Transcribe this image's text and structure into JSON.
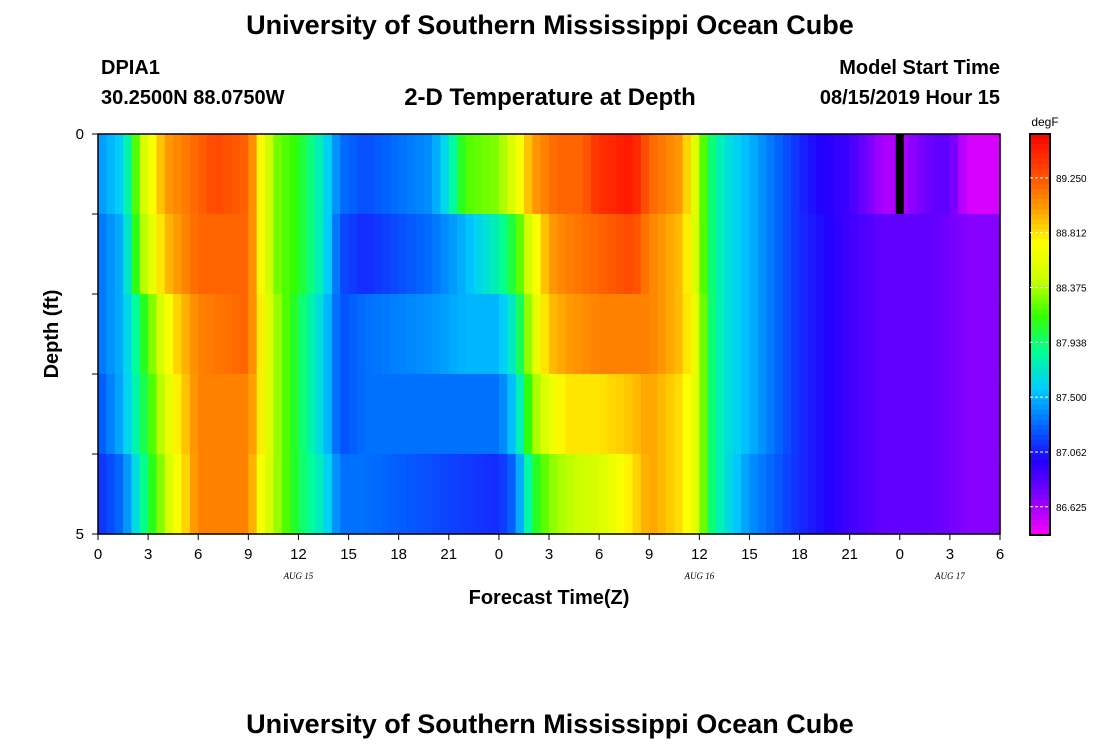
{
  "header": {
    "title": "University of Southern Mississippi Ocean Cube",
    "station_id": "DPIA1",
    "station_coords": "30.2500N 88.0750W",
    "plot_title": "2-D Temperature at Depth",
    "model_start_label": "Model Start Time",
    "model_start_value": "08/15/2019 Hour 15"
  },
  "footer": {
    "title": "University of Southern Mississippi Ocean Cube"
  },
  "chart_data": {
    "type": "heatmap",
    "title": "2-D Temperature at Depth",
    "xlabel": "Forecast Time(Z)",
    "ylabel": "Depth (ft)",
    "x_tick_labels": [
      "0",
      "3",
      "6",
      "9",
      "12",
      "15",
      "18",
      "21",
      "0",
      "3",
      "6",
      "9",
      "12",
      "15",
      "18",
      "21",
      "0",
      "3",
      "6"
    ],
    "x_hours_range": [
      0,
      54
    ],
    "date_labels": [
      {
        "hour": 12,
        "text": "AUG 15"
      },
      {
        "hour": 36,
        "text": "AUG 16"
      },
      {
        "hour": 51,
        "text": "AUG 17"
      }
    ],
    "y_tick_labels": [
      "0",
      "5"
    ],
    "ylim": [
      0,
      5
    ],
    "depth_levels": 5,
    "colorbar": {
      "unit": "degF",
      "min": 86.4,
      "max": 89.6,
      "tick_labels": [
        "89.250",
        "88.812",
        "88.375",
        "87.938",
        "87.500",
        "87.062",
        "86.625"
      ],
      "tick_values": [
        89.25,
        88.812,
        88.375,
        87.938,
        87.5,
        87.062,
        86.625
      ],
      "colors": [
        "#ff00ff",
        "#8800ff",
        "#2200ff",
        "#0066ff",
        "#00ccff",
        "#00ff99",
        "#33ff00",
        "#ccff00",
        "#ffff00",
        "#ff9900",
        "#ff4400",
        "#ff0000"
      ]
    },
    "time_step_hours": 0.5,
    "profile_keypoints": [
      {
        "depth_row": 0,
        "t_hours": [
          0,
          1.5,
          2.5,
          4,
          6,
          7,
          9,
          9.5,
          10.5,
          12,
          13.5,
          14.5,
          16,
          20,
          21,
          22,
          24,
          25,
          26,
          27.5,
          29,
          30,
          32,
          33,
          35,
          36,
          36.5,
          37.5,
          39,
          42,
          43,
          45,
          47,
          48,
          50,
          51,
          52,
          54
        ],
        "temps": [
          87.4,
          87.6,
          88.4,
          89.0,
          89.2,
          89.3,
          89.2,
          88.9,
          88.3,
          88.1,
          87.7,
          87.3,
          87.2,
          87.4,
          87.7,
          88.2,
          88.3,
          88.6,
          89.0,
          89.2,
          89.2,
          89.4,
          89.5,
          89.2,
          89.0,
          88.4,
          88.0,
          87.7,
          87.5,
          87.1,
          87.0,
          86.9,
          86.6,
          86.6,
          86.8,
          86.8,
          86.5,
          86.5
        ]
      },
      {
        "depth_row": 1,
        "t_hours": [
          0,
          1.5,
          2.5,
          4,
          6,
          9,
          9.5,
          10.5,
          12,
          13.5,
          14.5,
          16,
          20,
          22,
          24,
          25,
          26,
          27,
          28,
          30,
          32,
          33,
          35,
          36,
          36.5,
          37.5,
          39,
          42,
          45,
          47,
          50,
          52,
          54
        ],
        "temps": [
          87.3,
          87.5,
          88.3,
          88.9,
          89.2,
          89.2,
          88.9,
          88.3,
          88.1,
          87.7,
          87.2,
          87.1,
          87.3,
          87.5,
          87.8,
          88.1,
          88.6,
          89.0,
          89.1,
          89.2,
          89.3,
          89.1,
          88.9,
          88.4,
          88.0,
          87.7,
          87.5,
          87.1,
          86.9,
          86.8,
          86.8,
          86.7,
          86.7
        ]
      },
      {
        "depth_row": 2,
        "t_hours": [
          0,
          1.5,
          3,
          4.5,
          6,
          9,
          9.5,
          10.5,
          12,
          13.5,
          14.5,
          16,
          20,
          22,
          24,
          25,
          26,
          27,
          28,
          30,
          32,
          33,
          35,
          36,
          36.5,
          37.5,
          39,
          42,
          45,
          47,
          50,
          52,
          54
        ],
        "temps": [
          87.3,
          87.5,
          88.2,
          88.8,
          89.1,
          89.2,
          88.9,
          88.4,
          88.0,
          87.6,
          87.2,
          87.3,
          87.4,
          87.5,
          87.5,
          87.8,
          88.5,
          88.9,
          89.0,
          89.1,
          89.1,
          89.1,
          88.9,
          88.5,
          88.0,
          87.7,
          87.5,
          87.1,
          86.9,
          86.8,
          86.8,
          86.7,
          86.7
        ]
      },
      {
        "depth_row": 3,
        "t_hours": [
          0,
          1.5,
          3,
          4.5,
          6,
          9,
          9.5,
          10.5,
          12,
          13.5,
          14.5,
          16,
          20,
          24,
          25,
          26,
          27,
          28,
          30,
          32,
          33,
          35,
          36,
          36.5,
          37.5,
          39,
          42,
          45,
          47,
          50,
          52,
          54
        ],
        "temps": [
          87.2,
          87.5,
          88.1,
          88.7,
          89.1,
          89.1,
          88.9,
          88.4,
          88.0,
          87.6,
          87.2,
          87.3,
          87.3,
          87.3,
          87.6,
          88.3,
          88.6,
          88.8,
          88.8,
          88.9,
          89.0,
          88.8,
          88.5,
          88.0,
          87.7,
          87.5,
          87.1,
          86.9,
          86.8,
          86.8,
          86.7,
          86.7
        ]
      },
      {
        "depth_row": 4,
        "t_hours": [
          0,
          1.5,
          3,
          4.5,
          6,
          9,
          9.5,
          10.5,
          12,
          13.5,
          14.5,
          16,
          20,
          24,
          25,
          26,
          27,
          28,
          30,
          32,
          33,
          35,
          36,
          36.5,
          37.5,
          39,
          42,
          45,
          47,
          50,
          52,
          54
        ],
        "temps": [
          87.1,
          87.3,
          88.0,
          88.6,
          89.1,
          89.1,
          88.8,
          88.4,
          88.0,
          87.7,
          87.3,
          87.3,
          87.2,
          87.1,
          87.3,
          88.0,
          88.3,
          88.4,
          88.5,
          88.8,
          89.0,
          88.8,
          88.5,
          88.0,
          87.7,
          87.4,
          87.1,
          86.9,
          86.8,
          86.8,
          86.7,
          86.7
        ]
      }
    ],
    "missing_data_hour": 48,
    "missing_data_depth_row": 0
  }
}
